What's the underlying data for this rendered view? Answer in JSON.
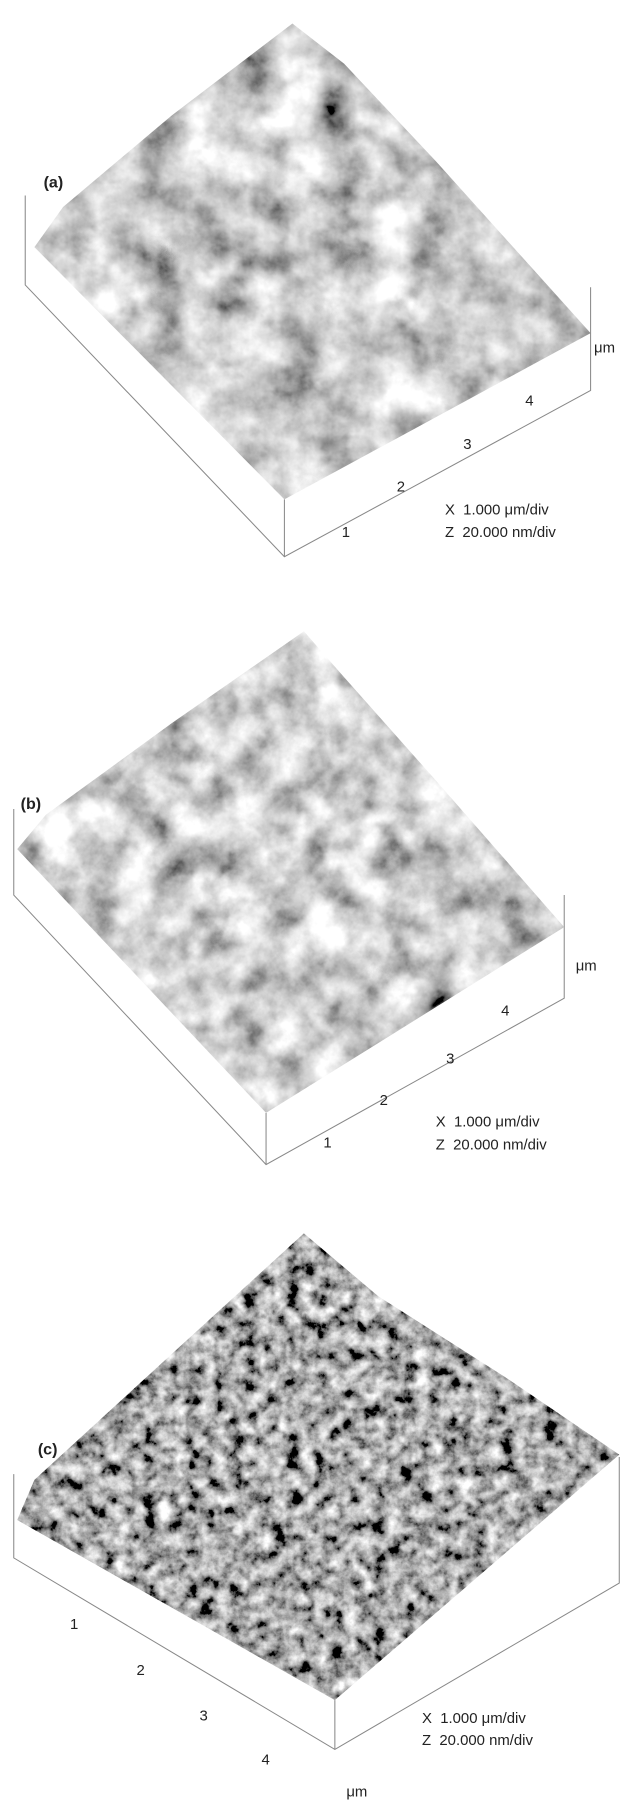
{
  "panels": [
    {
      "label": "(a)",
      "unit": "μm",
      "ticks": [
        "1",
        "2",
        "3",
        "4"
      ],
      "scale_x": "X  1.000 μm/div",
      "scale_z": "Z  20.000 nm/div"
    },
    {
      "label": "(b)",
      "unit": "μm",
      "ticks": [
        "1",
        "2",
        "3",
        "4"
      ],
      "scale_x": "X  1.000 μm/div",
      "scale_z": "Z  20.000 nm/div"
    },
    {
      "label": "(c)",
      "unit": "μm",
      "ticks": [
        "1",
        "2",
        "3",
        "4"
      ],
      "scale_x": "X  1.000 μm/div",
      "scale_z": "Z  20.000 nm/div"
    }
  ]
}
